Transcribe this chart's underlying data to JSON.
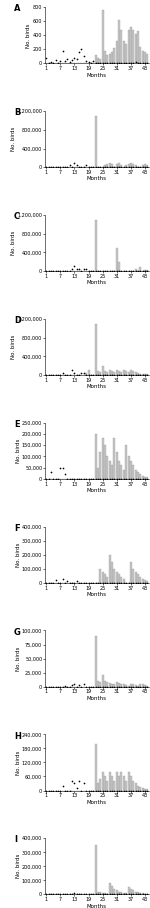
{
  "panels": [
    {
      "label": "A",
      "ylim": [
        0,
        800
      ],
      "yticks": [
        0,
        200,
        400,
        600,
        800
      ],
      "ytick_labels": [
        "0",
        "200",
        "400",
        "600",
        "800"
      ],
      "bars": [
        0,
        0,
        0,
        0,
        0,
        0,
        0,
        0,
        0,
        0,
        0,
        0,
        0,
        0,
        0,
        0,
        0,
        0,
        0,
        0,
        0,
        120,
        80,
        60,
        760,
        180,
        120,
        140,
        160,
        220,
        320,
        620,
        480,
        320,
        280,
        480,
        520,
        480,
        420,
        460,
        240,
        180,
        160,
        140
      ],
      "dots": [
        70,
        0,
        20,
        0,
        50,
        0,
        30,
        180,
        40,
        60,
        20,
        50,
        80,
        60,
        160,
        200,
        100,
        40,
        20,
        0,
        40,
        0,
        0,
        0,
        0,
        0,
        0,
        0,
        0,
        0,
        0,
        0,
        0,
        0,
        0,
        0,
        0,
        0,
        20,
        0,
        0,
        0,
        0,
        0
      ]
    },
    {
      "label": "B",
      "ylim": [
        0,
        1200000
      ],
      "yticks": [
        0,
        400000,
        800000,
        1200000
      ],
      "ytick_labels": [
        "0",
        "400,000",
        "800,000",
        "1,200,000"
      ],
      "bars": [
        0,
        0,
        0,
        0,
        0,
        0,
        0,
        0,
        0,
        0,
        0,
        0,
        0,
        0,
        0,
        0,
        0,
        0,
        0,
        0,
        0,
        1100000,
        0,
        0,
        0,
        50000,
        80000,
        100000,
        80000,
        0,
        80000,
        100000,
        50000,
        0,
        50000,
        80000,
        100000,
        80000,
        50000,
        0,
        0,
        50000,
        80000,
        50000
      ],
      "dots": [
        0,
        0,
        0,
        0,
        0,
        0,
        0,
        0,
        0,
        0,
        50000,
        0,
        100000,
        50000,
        0,
        0,
        0,
        50000,
        0,
        0,
        0,
        0,
        0,
        0,
        0,
        0,
        0,
        0,
        0,
        0,
        0,
        0,
        0,
        0,
        0,
        0,
        0,
        0,
        0,
        0,
        0,
        0,
        0,
        0
      ]
    },
    {
      "label": "C",
      "ylim": [
        0,
        1200000
      ],
      "yticks": [
        0,
        400000,
        800000,
        1200000
      ],
      "ytick_labels": [
        "0",
        "400,000",
        "800,000",
        "1,200,000"
      ],
      "bars": [
        0,
        0,
        0,
        0,
        0,
        0,
        0,
        0,
        0,
        0,
        0,
        0,
        0,
        0,
        0,
        0,
        0,
        0,
        0,
        0,
        0,
        1100000,
        0,
        0,
        0,
        0,
        0,
        0,
        0,
        0,
        500000,
        200000,
        0,
        0,
        0,
        0,
        0,
        0,
        50000,
        0,
        80000,
        0,
        30000,
        30000
      ],
      "dots": [
        0,
        0,
        0,
        0,
        0,
        0,
        0,
        0,
        0,
        0,
        0,
        50000,
        100000,
        50000,
        50000,
        0,
        50000,
        50000,
        0,
        0,
        0,
        0,
        0,
        0,
        0,
        0,
        0,
        0,
        0,
        0,
        0,
        0,
        0,
        0,
        0,
        0,
        0,
        0,
        0,
        0,
        0,
        0,
        0,
        0
      ]
    },
    {
      "label": "D",
      "ylim": [
        0,
        1200000
      ],
      "yticks": [
        0,
        400000,
        800000,
        1200000
      ],
      "ytick_labels": [
        "0",
        "400,000",
        "800,000",
        "1,200,000"
      ],
      "bars": [
        0,
        0,
        0,
        0,
        0,
        0,
        0,
        0,
        0,
        0,
        0,
        0,
        0,
        0,
        0,
        0,
        0,
        50000,
        100000,
        0,
        0,
        1100000,
        80000,
        60000,
        200000,
        80000,
        60000,
        100000,
        80000,
        60000,
        100000,
        80000,
        60000,
        100000,
        80000,
        60000,
        100000,
        80000,
        60000,
        40000,
        30000,
        20000,
        30000,
        20000
      ],
      "dots": [
        0,
        0,
        0,
        0,
        0,
        0,
        0,
        50000,
        0,
        0,
        0,
        100000,
        50000,
        0,
        0,
        50000,
        50000,
        0,
        0,
        0,
        0,
        0,
        0,
        0,
        0,
        0,
        0,
        0,
        0,
        0,
        0,
        0,
        0,
        0,
        0,
        0,
        0,
        0,
        0,
        0,
        0,
        0,
        0,
        0
      ]
    },
    {
      "label": "E",
      "ylim": [
        0,
        250000
      ],
      "yticks": [
        0,
        50000,
        100000,
        150000,
        200000,
        250000
      ],
      "ytick_labels": [
        "0",
        "50,000",
        "100,000",
        "150,000",
        "200,000",
        "250,000"
      ],
      "bars": [
        0,
        0,
        0,
        0,
        0,
        0,
        0,
        0,
        0,
        0,
        0,
        0,
        0,
        0,
        0,
        0,
        0,
        0,
        0,
        0,
        0,
        200000,
        50000,
        120000,
        180000,
        150000,
        100000,
        80000,
        60000,
        180000,
        120000,
        80000,
        60000,
        40000,
        150000,
        100000,
        80000,
        60000,
        40000,
        30000,
        20000,
        15000,
        10000,
        8000
      ],
      "dots": [
        0,
        0,
        30000,
        0,
        0,
        0,
        50000,
        50000,
        20000,
        0,
        0,
        0,
        0,
        0,
        0,
        0,
        0,
        0,
        0,
        0,
        0,
        0,
        0,
        0,
        0,
        0,
        0,
        0,
        0,
        0,
        0,
        0,
        0,
        0,
        0,
        0,
        0,
        0,
        0,
        0,
        0,
        0,
        0,
        0
      ]
    },
    {
      "label": "F",
      "ylim": [
        0,
        400000
      ],
      "yticks": [
        0,
        100000,
        200000,
        300000,
        400000
      ],
      "ytick_labels": [
        "0",
        "100,000",
        "200,000",
        "300,000",
        "400,000"
      ],
      "bars": [
        0,
        0,
        0,
        0,
        0,
        0,
        0,
        0,
        0,
        0,
        0,
        0,
        0,
        0,
        0,
        0,
        0,
        0,
        0,
        0,
        0,
        0,
        0,
        100000,
        80000,
        60000,
        40000,
        200000,
        150000,
        100000,
        80000,
        60000,
        40000,
        30000,
        0,
        0,
        150000,
        100000,
        80000,
        60000,
        40000,
        30000,
        20000,
        15000
      ],
      "dots": [
        0,
        0,
        0,
        0,
        20000,
        0,
        0,
        30000,
        0,
        10000,
        0,
        0,
        0,
        10000,
        0,
        0,
        0,
        0,
        0,
        0,
        0,
        0,
        0,
        0,
        0,
        0,
        0,
        0,
        0,
        0,
        0,
        0,
        0,
        0,
        0,
        0,
        0,
        0,
        0,
        0,
        0,
        0,
        0,
        0
      ]
    },
    {
      "label": "G",
      "ylim": [
        0,
        100000
      ],
      "yticks": [
        0,
        25000,
        50000,
        75000,
        100000
      ],
      "ytick_labels": [
        "0",
        "25,000",
        "50,000",
        "75,000",
        "100,000"
      ],
      "bars": [
        0,
        0,
        0,
        0,
        0,
        0,
        0,
        0,
        0,
        0,
        0,
        0,
        0,
        0,
        0,
        0,
        0,
        0,
        0,
        0,
        0,
        90000,
        10000,
        8000,
        20000,
        10000,
        8000,
        6000,
        5000,
        4000,
        8000,
        6000,
        5000,
        4000,
        3000,
        2000,
        5000,
        4000,
        3000,
        2000,
        5000,
        4000,
        3000,
        2000
      ],
      "dots": [
        0,
        0,
        0,
        0,
        0,
        0,
        0,
        0,
        2000,
        0,
        0,
        3000,
        5000,
        0,
        3000,
        0,
        5000,
        0,
        0,
        0,
        0,
        0,
        0,
        0,
        0,
        0,
        0,
        0,
        0,
        0,
        0,
        0,
        0,
        0,
        0,
        0,
        0,
        0,
        0,
        0,
        0,
        0,
        0,
        0
      ]
    },
    {
      "label": "H",
      "ylim": [
        0,
        240000
      ],
      "yticks": [
        0,
        60000,
        120000,
        180000,
        240000
      ],
      "ytick_labels": [
        "0",
        "60,000",
        "120,000",
        "180,000",
        "240,000"
      ],
      "bars": [
        0,
        0,
        0,
        0,
        0,
        0,
        0,
        0,
        0,
        0,
        0,
        0,
        0,
        0,
        0,
        0,
        0,
        0,
        0,
        0,
        0,
        200000,
        30000,
        50000,
        80000,
        60000,
        40000,
        80000,
        60000,
        40000,
        80000,
        60000,
        80000,
        60000,
        40000,
        80000,
        60000,
        40000,
        30000,
        20000,
        15000,
        10000,
        8000,
        5000
      ],
      "dots": [
        0,
        0,
        0,
        0,
        0,
        0,
        0,
        20000,
        0,
        0,
        0,
        40000,
        30000,
        10000,
        40000,
        0,
        30000,
        0,
        0,
        0,
        0,
        0,
        0,
        0,
        0,
        0,
        0,
        0,
        0,
        0,
        0,
        0,
        0,
        0,
        0,
        0,
        0,
        0,
        0,
        0,
        0,
        0,
        0,
        0
      ]
    },
    {
      "label": "I",
      "ylim": [
        0,
        400000
      ],
      "yticks": [
        0,
        100000,
        200000,
        300000,
        400000
      ],
      "ytick_labels": [
        "0",
        "100,000",
        "200,000",
        "300,000",
        "400,000"
      ],
      "bars": [
        0,
        0,
        0,
        0,
        0,
        0,
        0,
        0,
        0,
        0,
        0,
        0,
        0,
        0,
        0,
        0,
        0,
        0,
        0,
        0,
        0,
        350000,
        20000,
        15000,
        10000,
        8000,
        6000,
        80000,
        60000,
        40000,
        30000,
        20000,
        15000,
        10000,
        8000,
        50000,
        40000,
        30000,
        20000,
        15000,
        10000,
        8000,
        6000,
        5000
      ],
      "dots": [
        0,
        0,
        0,
        0,
        0,
        0,
        0,
        0,
        0,
        0,
        0,
        5000,
        10000,
        0,
        0,
        0,
        0,
        0,
        0,
        0,
        0,
        0,
        0,
        0,
        0,
        0,
        0,
        0,
        0,
        0,
        0,
        0,
        0,
        0,
        0,
        0,
        0,
        0,
        0,
        0,
        0,
        0,
        0,
        0
      ]
    }
  ],
  "n_months": 44,
  "xticks": [
    1,
    7,
    13,
    19,
    25,
    31,
    37,
    43
  ],
  "xlabel": "Months",
  "ylabel": "No. birds",
  "bar_color": "#c8c8c8",
  "dot_color": "#000000",
  "bar_edge_color": "#888888",
  "background_color": "#ffffff",
  "ylabel_fontsize": 4,
  "xlabel_fontsize": 4,
  "tick_fontsize": 3.5,
  "panel_label_fontsize": 6
}
